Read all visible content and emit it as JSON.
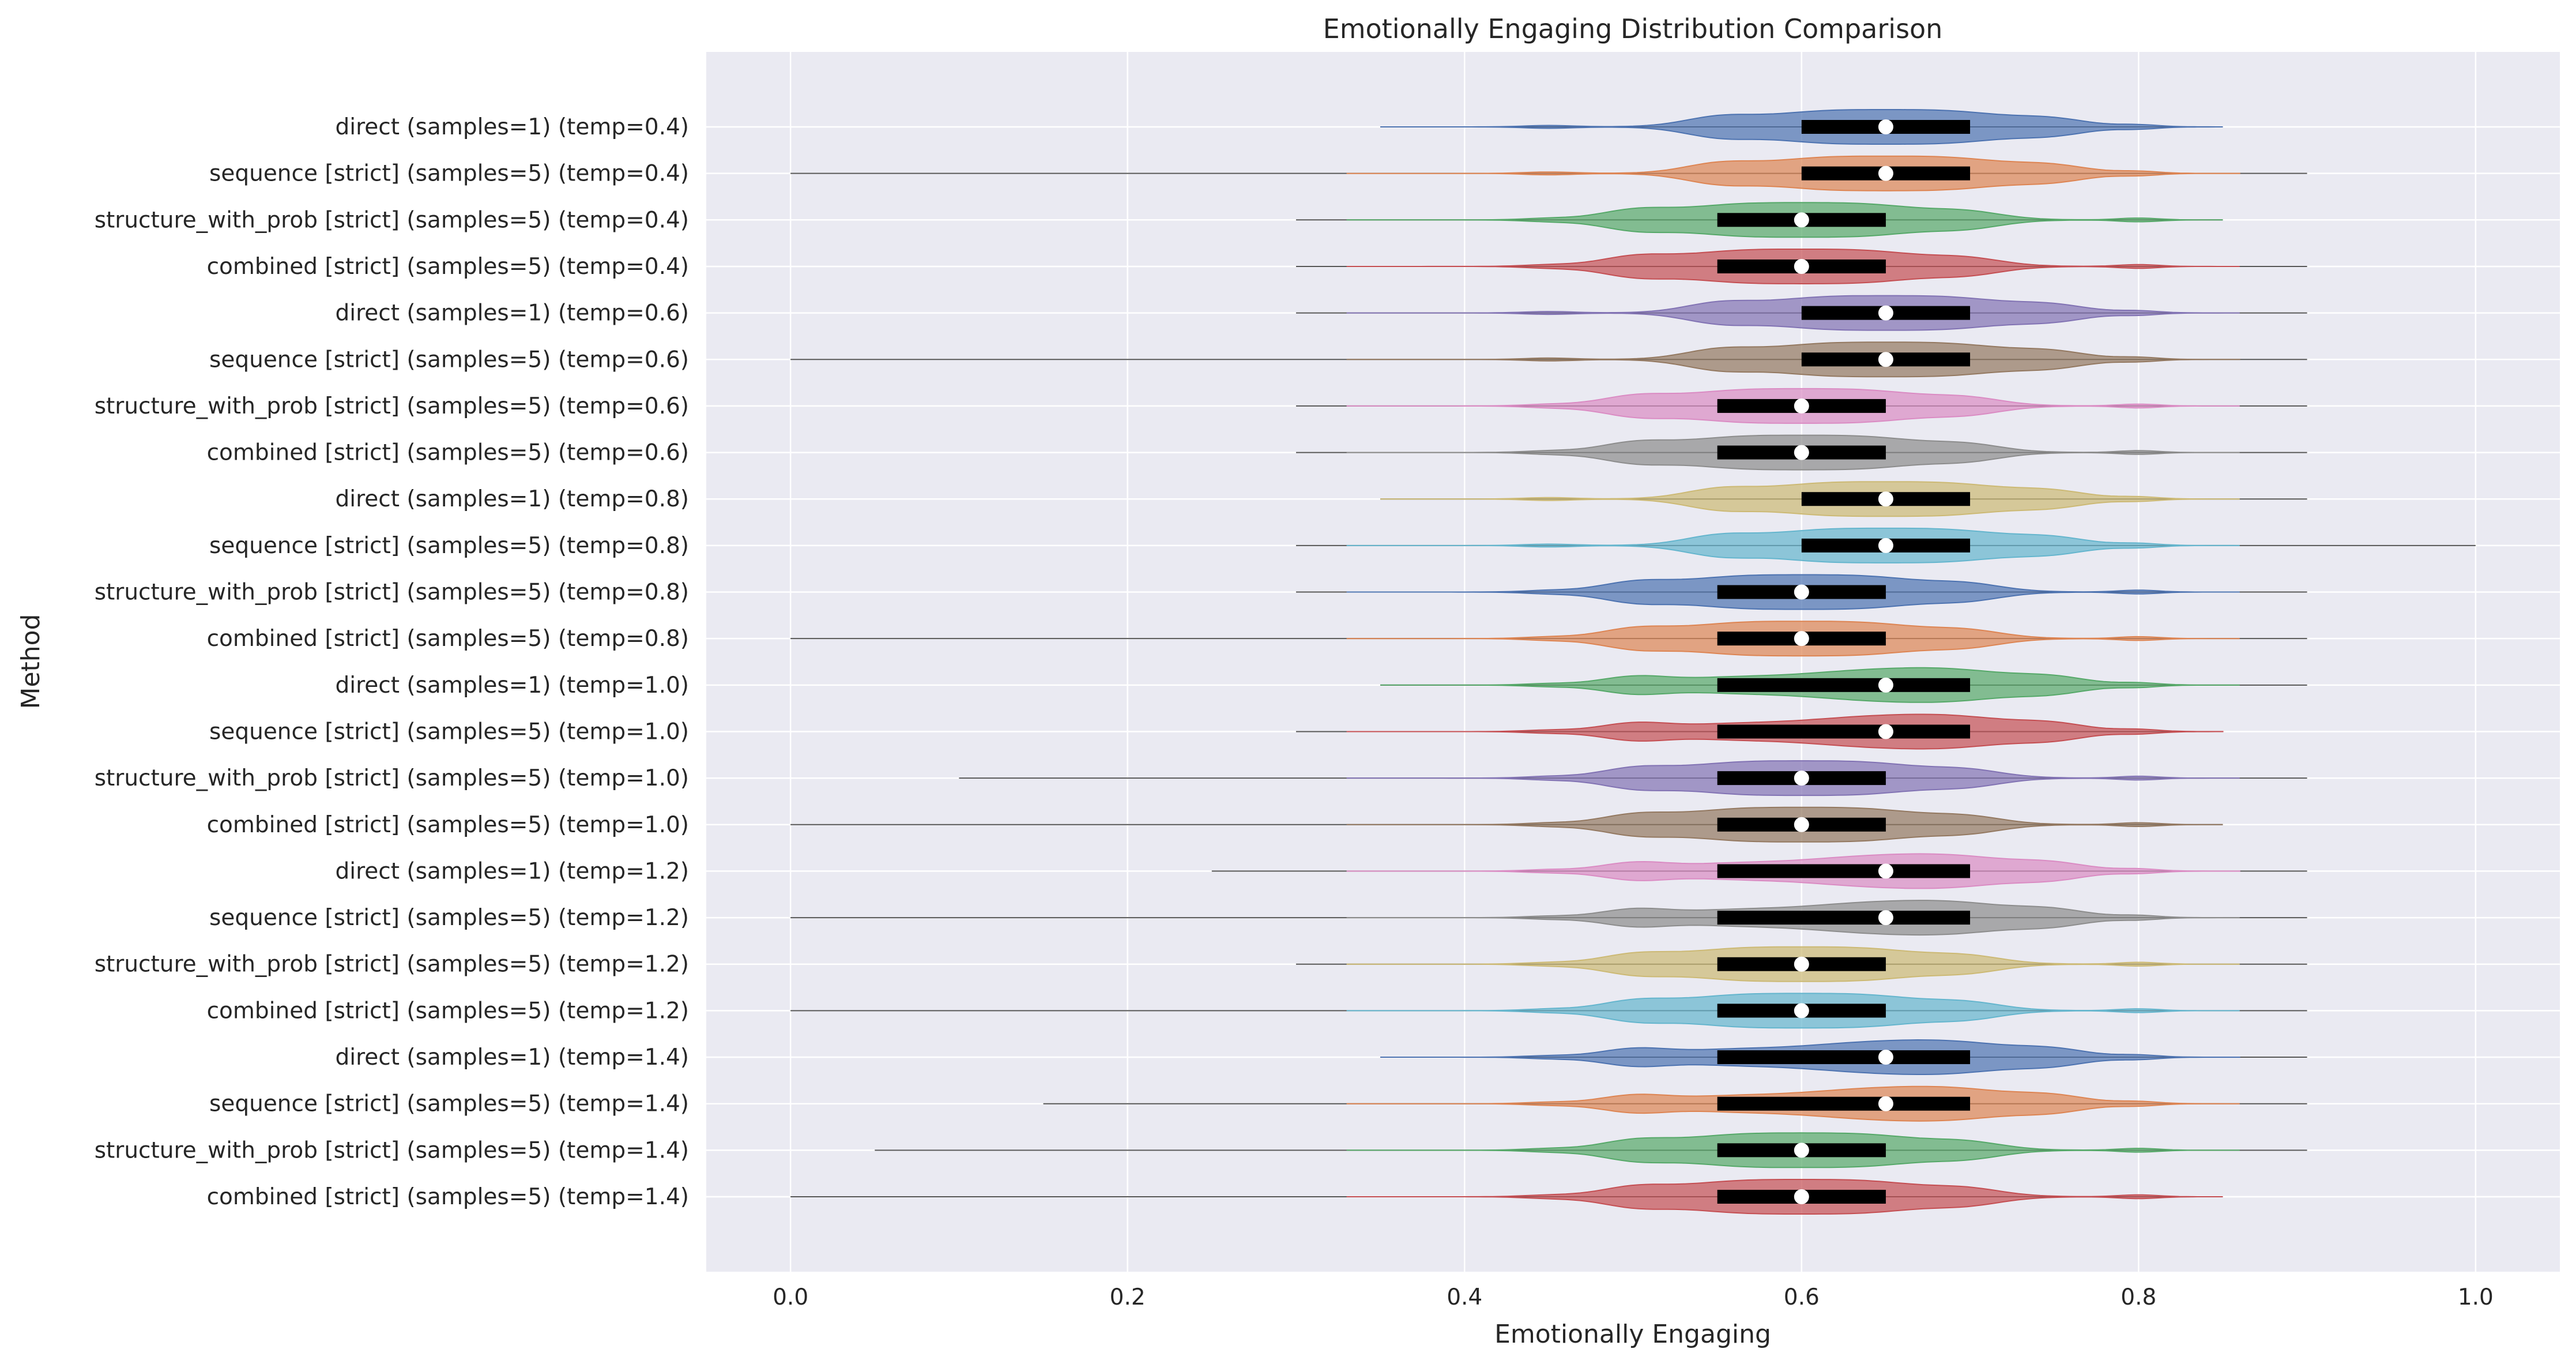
{
  "chart_data": {
    "type": "violin",
    "title": "Emotionally Engaging Distribution Comparison",
    "xlabel": "Emotionally Engaging",
    "ylabel": "Method",
    "xlim": [
      -0.05,
      1.05
    ],
    "xticks": [
      0.0,
      0.2,
      0.4,
      0.6,
      0.8,
      1.0
    ],
    "xtick_labels": [
      "0.0",
      "0.2",
      "0.4",
      "0.6",
      "0.8",
      "1.0"
    ],
    "grid": true,
    "legend": "none",
    "palette": [
      "#4c72b0",
      "#dd8452",
      "#55a868",
      "#c44e52",
      "#8172b3",
      "#937860",
      "#da8bc3",
      "#8c8c8c",
      "#ccb974",
      "#64b5cd"
    ],
    "background": "#eaeaf2",
    "series": [
      {
        "label": "direct (samples=1) (temp=0.4)",
        "min": 0.35,
        "q1": 0.6,
        "median": 0.65,
        "q3": 0.7,
        "max": 0.85,
        "color": "#4c72b0"
      },
      {
        "label": "sequence [strict] (samples=5) (temp=0.4)",
        "min": 0.0,
        "q1": 0.6,
        "median": 0.65,
        "q3": 0.7,
        "max": 0.9,
        "color": "#dd8452"
      },
      {
        "label": "structure_with_prob [strict] (samples=5) (temp=0.4)",
        "min": 0.3,
        "q1": 0.55,
        "median": 0.6,
        "q3": 0.65,
        "max": 0.85,
        "color": "#55a868"
      },
      {
        "label": "combined [strict] (samples=5) (temp=0.4)",
        "min": 0.3,
        "q1": 0.55,
        "median": 0.6,
        "q3": 0.65,
        "max": 0.9,
        "color": "#c44e52"
      },
      {
        "label": "direct (samples=1) (temp=0.6)",
        "min": 0.3,
        "q1": 0.6,
        "median": 0.65,
        "q3": 0.7,
        "max": 0.9,
        "color": "#8172b3"
      },
      {
        "label": "sequence [strict] (samples=5) (temp=0.6)",
        "min": 0.0,
        "q1": 0.6,
        "median": 0.65,
        "q3": 0.7,
        "max": 0.9,
        "color": "#937860"
      },
      {
        "label": "structure_with_prob [strict] (samples=5) (temp=0.6)",
        "min": 0.3,
        "q1": 0.55,
        "median": 0.6,
        "q3": 0.65,
        "max": 0.9,
        "color": "#da8bc3"
      },
      {
        "label": "combined [strict] (samples=5) (temp=0.6)",
        "min": 0.3,
        "q1": 0.55,
        "median": 0.6,
        "q3": 0.65,
        "max": 0.9,
        "color": "#8c8c8c"
      },
      {
        "label": "direct (samples=1) (temp=0.8)",
        "min": 0.35,
        "q1": 0.6,
        "median": 0.65,
        "q3": 0.7,
        "max": 0.9,
        "color": "#ccb974"
      },
      {
        "label": "sequence [strict] (samples=5) (temp=0.8)",
        "min": 0.3,
        "q1": 0.6,
        "median": 0.65,
        "q3": 0.7,
        "max": 1.0,
        "color": "#64b5cd"
      },
      {
        "label": "structure_with_prob [strict] (samples=5) (temp=0.8)",
        "min": 0.3,
        "q1": 0.55,
        "median": 0.6,
        "q3": 0.65,
        "max": 0.9,
        "color": "#4c72b0"
      },
      {
        "label": "combined [strict] (samples=5) (temp=0.8)",
        "min": 0.0,
        "q1": 0.55,
        "median": 0.6,
        "q3": 0.65,
        "max": 0.9,
        "color": "#dd8452"
      },
      {
        "label": "direct (samples=1) (temp=1.0)",
        "min": 0.35,
        "q1": 0.55,
        "median": 0.65,
        "q3": 0.7,
        "max": 0.9,
        "color": "#55a868"
      },
      {
        "label": "sequence [strict] (samples=5) (temp=1.0)",
        "min": 0.3,
        "q1": 0.55,
        "median": 0.65,
        "q3": 0.7,
        "max": 0.85,
        "color": "#c44e52"
      },
      {
        "label": "structure_with_prob [strict] (samples=5) (temp=1.0)",
        "min": 0.1,
        "q1": 0.55,
        "median": 0.6,
        "q3": 0.65,
        "max": 0.9,
        "color": "#8172b3"
      },
      {
        "label": "combined [strict] (samples=5) (temp=1.0)",
        "min": 0.0,
        "q1": 0.55,
        "median": 0.6,
        "q3": 0.65,
        "max": 0.85,
        "color": "#937860"
      },
      {
        "label": "direct (samples=1) (temp=1.2)",
        "min": 0.25,
        "q1": 0.55,
        "median": 0.65,
        "q3": 0.7,
        "max": 0.9,
        "color": "#da8bc3"
      },
      {
        "label": "sequence [strict] (samples=5) (temp=1.2)",
        "min": 0.0,
        "q1": 0.55,
        "median": 0.65,
        "q3": 0.7,
        "max": 0.9,
        "color": "#8c8c8c"
      },
      {
        "label": "structure_with_prob [strict] (samples=5) (temp=1.2)",
        "min": 0.3,
        "q1": 0.55,
        "median": 0.6,
        "q3": 0.65,
        "max": 0.9,
        "color": "#ccb974"
      },
      {
        "label": "combined [strict] (samples=5) (temp=1.2)",
        "min": 0.0,
        "q1": 0.55,
        "median": 0.6,
        "q3": 0.65,
        "max": 0.9,
        "color": "#64b5cd"
      },
      {
        "label": "direct (samples=1) (temp=1.4)",
        "min": 0.35,
        "q1": 0.55,
        "median": 0.65,
        "q3": 0.7,
        "max": 0.9,
        "color": "#4c72b0"
      },
      {
        "label": "sequence [strict] (samples=5) (temp=1.4)",
        "min": 0.15,
        "q1": 0.55,
        "median": 0.65,
        "q3": 0.7,
        "max": 0.9,
        "color": "#dd8452"
      },
      {
        "label": "structure_with_prob [strict] (samples=5) (temp=1.4)",
        "min": 0.05,
        "q1": 0.55,
        "median": 0.6,
        "q3": 0.65,
        "max": 0.9,
        "color": "#55a868"
      },
      {
        "label": "combined [strict] (samples=5) (temp=1.4)",
        "min": 0.0,
        "q1": 0.55,
        "median": 0.6,
        "q3": 0.65,
        "max": 0.85,
        "color": "#c44e52"
      }
    ]
  }
}
